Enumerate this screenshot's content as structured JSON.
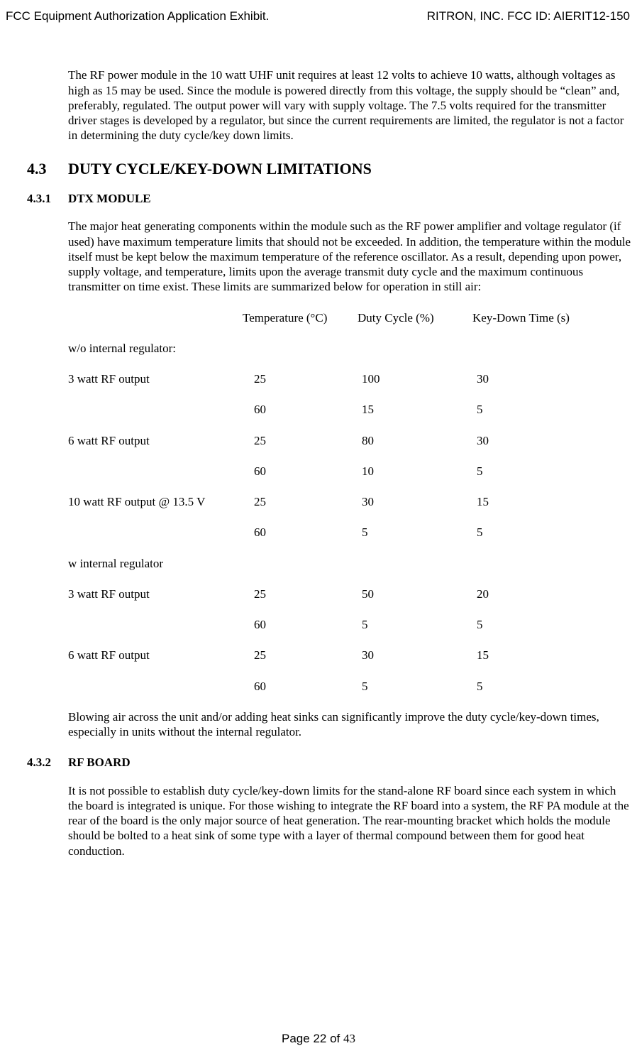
{
  "header": {
    "left": "FCC Equipment Authorization Application Exhibit.",
    "right": "RITRON, INC.  FCC ID:  AIERIT12-150"
  },
  "intro_paragraph": "The RF power module in the 10 watt UHF unit requires at least 12 volts to achieve 10 watts, although voltages as high as 15 may be used.  Since the module is powered directly from this voltage, the supply should be “clean” and, preferably, regulated.  The output power will vary with supply voltage.  The 7.5 volts required for the transmitter driver stages is developed by a regulator, but since the current requirements are limited, the regulator is not a factor in determining the duty cycle/key down limits.",
  "s43": {
    "num": "4.3",
    "title": "DUTY CYCLE/KEY-DOWN LIMITATIONS"
  },
  "s431": {
    "num": "4.3.1",
    "title": "DTX MODULE"
  },
  "dtx_paragraph": "The major heat generating components within the module such as the RF power amplifier and voltage regulator (if used) have maximum temperature limits that should not be exceeded.  In addition, the temperature within the module itself must be kept below the maximum temperature of the reference oscillator.  As a result, depending upon power, supply voltage, and temperature, limits upon the average transmit duty cycle and the maximum continuous transmitter on time exist.  These limits are summarized below for operation in still air:",
  "table": {
    "headers": {
      "c1": "Temperature (°C)",
      "c2": "Duty Cycle (%)",
      "c3": "Key-Down Time (s)"
    },
    "group1_label": "w/o internal regulator:",
    "group1": [
      {
        "label": "3 watt RF output",
        "t": "25",
        "d": "100",
        "k": "30"
      },
      {
        "label": "",
        "t": "60",
        "d": "15",
        "k": "5"
      },
      {
        "label": "6 watt RF output",
        "t": "25",
        "d": "80",
        "k": "30"
      },
      {
        "label": "",
        "t": "60",
        "d": "10",
        "k": "5"
      },
      {
        "label": "10 watt RF output @ 13.5 V",
        "t": "25",
        "d": "30",
        "k": "15"
      },
      {
        "label": "",
        "t": "60",
        "d": "5",
        "k": "5"
      }
    ],
    "group2_label": "w internal regulator",
    "group2": [
      {
        "label": "3 watt RF output",
        "t": "25",
        "d": "50",
        "k": "20"
      },
      {
        "label": "",
        "t": "60",
        "d": "5",
        "k": "5"
      },
      {
        "label": "6 watt RF output",
        "t": "25",
        "d": "30",
        "k": "15"
      },
      {
        "label": "",
        "t": "60",
        "d": "5",
        "k": "5"
      }
    ]
  },
  "after_table_paragraph": "Blowing air across the unit and/or adding heat sinks can significantly improve the duty cycle/key-down times, especially in units without the internal regulator.",
  "s432": {
    "num": "4.3.2",
    "title": "RF BOARD"
  },
  "rfboard_paragraph": "It is not possible to establish duty cycle/key-down limits for the stand-alone RF board since each system in which the board is integrated is unique.  For those wishing to integrate the RF board into a system, the RF PA module at the rear of the board is the only major source of heat generation.  The rear-mounting bracket which holds the module should be bolted to a heat sink of some type with a layer of thermal compound between them for good heat conduction.",
  "footer": {
    "prefix": "Page 22 of ",
    "total": "43"
  }
}
